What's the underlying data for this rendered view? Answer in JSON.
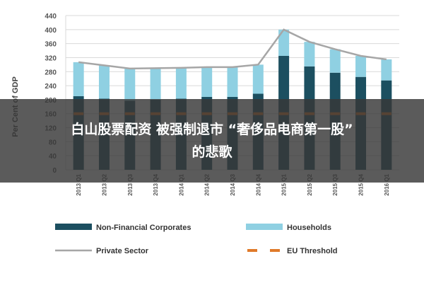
{
  "chart_data": {
    "type": "bar",
    "stacked": true,
    "ylabel": "Per Cent of GDP",
    "ylim": [
      0,
      440
    ],
    "yticks": [
      0,
      40,
      80,
      120,
      160,
      200,
      240,
      280,
      320,
      360,
      400,
      440
    ],
    "grid": true,
    "legend_position": "bottom",
    "categories": [
      "2013 Q1",
      "2013 Q2",
      "2013 Q3",
      "2013 Q4",
      "2014 Q1",
      "2014 Q2",
      "2014 Q3",
      "2014 Q4",
      "2015 Q1",
      "2015 Q2",
      "2015 Q3",
      "2015 Q4",
      "2016 Q1"
    ],
    "series": [
      {
        "name": "Non-Financial Corporates",
        "kind": "bar",
        "color": "#1c4f60",
        "values": [
          210,
          203,
          197,
          200,
          203,
          208,
          208,
          217,
          325,
          295,
          277,
          265,
          255
        ]
      },
      {
        "name": "Households",
        "kind": "bar",
        "color": "#8fd0e2",
        "values": [
          97,
          95,
          92,
          90,
          88,
          85,
          85,
          83,
          75,
          70,
          67,
          60,
          60
        ]
      },
      {
        "name": "Private Sector",
        "kind": "line",
        "color": "#a6a6a6",
        "values": [
          307,
          298,
          289,
          290,
          291,
          293,
          293,
          300,
          400,
          365,
          344,
          325,
          315
        ]
      },
      {
        "name": "EU Threshold",
        "kind": "dashed",
        "color": "#e07a2a",
        "values": [
          160,
          160,
          160,
          160,
          160,
          160,
          160,
          160,
          160,
          160,
          160,
          160,
          160
        ]
      }
    ]
  },
  "overlay": {
    "line1": "白山股票配资 被强制退市 “奢侈品电商第一股”",
    "line2": "的悲歌"
  }
}
